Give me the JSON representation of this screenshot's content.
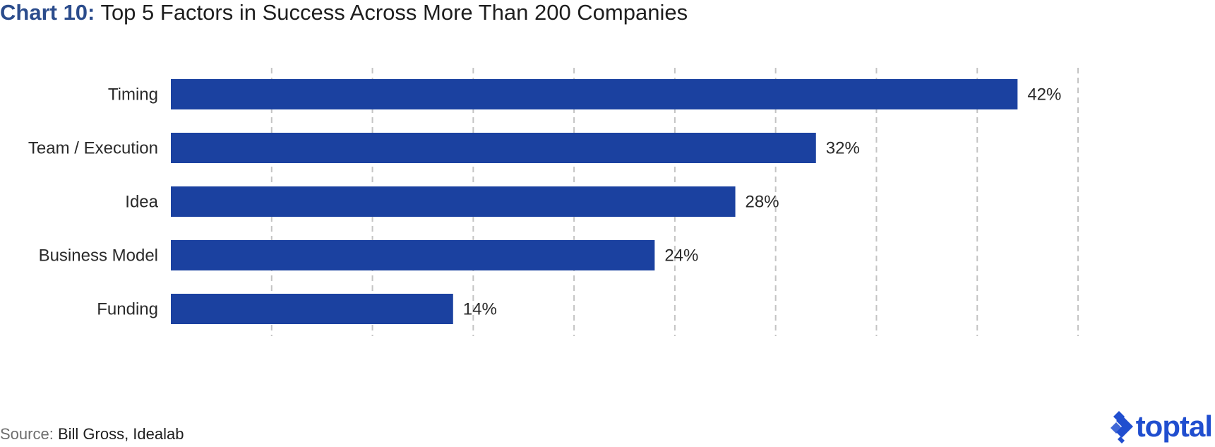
{
  "title": {
    "prefix": "Chart 10:",
    "text": "Top 5 Factors in Success Across More Than 200 Companies"
  },
  "source": {
    "prefix": "Source:",
    "text": "Bill Gross, Idealab"
  },
  "logo": {
    "text": "toptal",
    "icon": "toptal-logo-icon"
  },
  "colors": {
    "bar": "#1b41a0",
    "title_accent": "#2b4c8c",
    "grid": "#c4c4c4",
    "logo": "#204ecf"
  },
  "chart_data": {
    "type": "bar",
    "orientation": "horizontal",
    "categories": [
      "Timing",
      "Team / Execution",
      "Idea",
      "Business Model",
      "Funding"
    ],
    "values": [
      42,
      32,
      28,
      24,
      14
    ],
    "value_labels": [
      "42%",
      "32%",
      "28%",
      "24%",
      "14%"
    ],
    "xlim": [
      0,
      45
    ],
    "grid": true,
    "grid_style": "dashed vertical",
    "axis_ticks_visible": false,
    "legend": "none"
  }
}
